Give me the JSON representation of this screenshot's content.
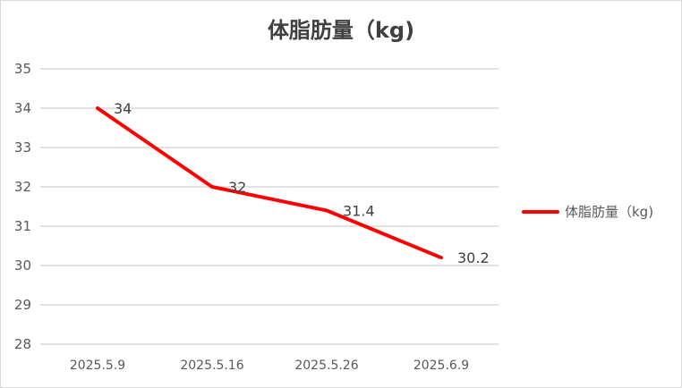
{
  "chart_data": {
    "type": "line",
    "title": "体脂肪量（kg)",
    "xlabel": "",
    "ylabel": "",
    "categories": [
      "2025.5.9",
      "2025.5.16",
      "2025.5.26",
      "2025.6.9"
    ],
    "series": [
      {
        "name": "体脂肪量（kg)",
        "values": [
          34,
          32,
          31.4,
          30.2
        ],
        "data_labels": [
          "34",
          "32",
          "31.4",
          "30.2"
        ],
        "color": "#ff0000"
      }
    ],
    "ylim": [
      28,
      35
    ],
    "yticks": [
      "28",
      "29",
      "30",
      "31",
      "32",
      "33",
      "34",
      "35"
    ],
    "grid": true,
    "legend_position": "right"
  },
  "title": "体脂肪量（kg)",
  "legend": {
    "label": "体脂肪量（kg)"
  },
  "colors": {
    "line": "#ff0000",
    "grid": "#d9d9d9",
    "text": "#595959"
  }
}
